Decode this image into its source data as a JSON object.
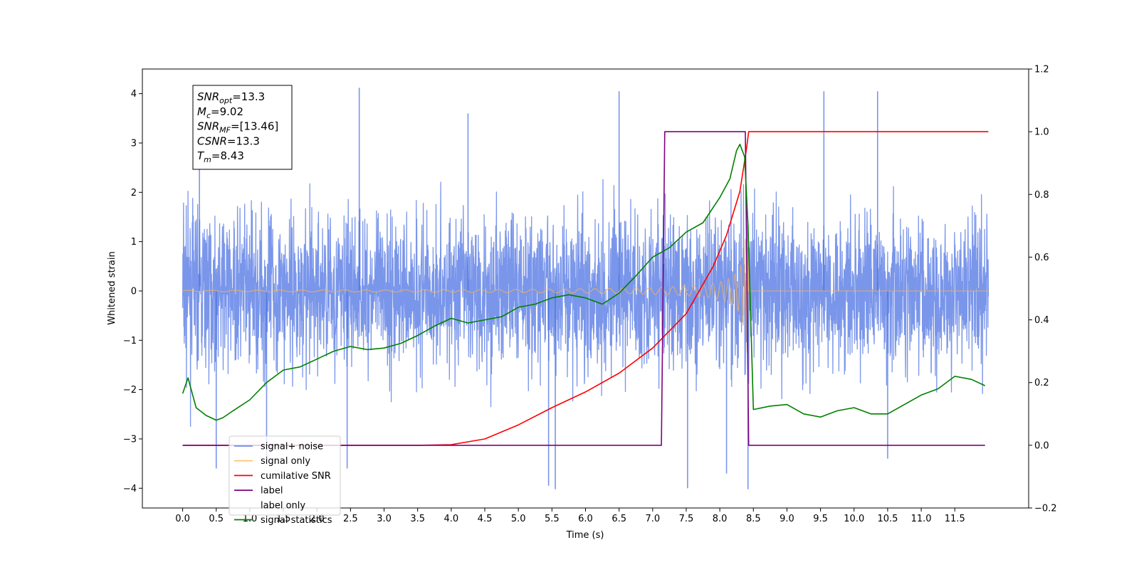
{
  "chart_data": {
    "type": "line",
    "xlabel": "Time (s)",
    "ylabel": "Whitened strain",
    "xlim": [
      -0.6,
      12.6
    ],
    "ylim_left": [
      -4.4,
      4.5
    ],
    "ylim_right": [
      -0.2,
      1.2
    ],
    "x_ticks": [
      "0.0",
      "0.5",
      "1.0",
      "1.5",
      "2.0",
      "2.5",
      "3.0",
      "3.5",
      "4.0",
      "4.5",
      "5.0",
      "5.5",
      "6.0",
      "6.5",
      "7.0",
      "7.5",
      "8.0",
      "8.5",
      "9.0",
      "9.5",
      "10.0",
      "10.5",
      "11.0",
      "11.5"
    ],
    "y_ticks_left": [
      "4",
      "3",
      "2",
      "1",
      "0",
      "−1",
      "−2",
      "−3",
      "−4"
    ],
    "y_ticks_right": [
      "1.2",
      "1.0",
      "0.8",
      "0.6",
      "0.4",
      "0.2",
      "0.0",
      "−0.2"
    ],
    "grid": false,
    "legend_position": "bottom-left",
    "legend": [
      "signal+ noise",
      "signal only",
      "cumilative SNR",
      "label",
      "label only",
      "signal statistics"
    ],
    "info_box": {
      "lines": [
        {
          "symbol": "SNR",
          "sub": "opt",
          "value": "=13.3"
        },
        {
          "symbol": "M",
          "sub": "c",
          "value": "=9.02"
        },
        {
          "symbol": "SNR",
          "sub": "MF",
          "value": "=[13.46]"
        },
        {
          "symbol": "CSNR",
          "sub": "",
          "value": "=13.3"
        },
        {
          "symbol": "T",
          "sub": "m",
          "value": "=8.43"
        }
      ]
    },
    "series": [
      {
        "name": "signal+ noise",
        "axis": "left",
        "color": "#4169e1",
        "kind": "noise",
        "x_range": [
          0.0,
          12.0
        ],
        "typical_range": [
          -2.5,
          2.5
        ],
        "spikes": [
          {
            "x": 2.63,
            "y": 4.12
          },
          {
            "x": 6.5,
            "y": 4.05
          },
          {
            "x": 9.55,
            "y": 4.05
          },
          {
            "x": 10.35,
            "y": 4.05
          },
          {
            "x": 0.25,
            "y": 3.75
          },
          {
            "x": 4.25,
            "y": 3.6
          },
          {
            "x": 5.45,
            "y": -3.95
          },
          {
            "x": 5.55,
            "y": -4.02
          },
          {
            "x": 7.52,
            "y": -4.0
          },
          {
            "x": 8.42,
            "y": -4.02
          },
          {
            "x": 0.5,
            "y": -3.6
          },
          {
            "x": 1.25,
            "y": -3.5
          },
          {
            "x": 2.45,
            "y": -3.6
          },
          {
            "x": 10.5,
            "y": -3.4
          },
          {
            "x": 8.1,
            "y": -3.7
          }
        ]
      },
      {
        "name": "signal only",
        "axis": "left",
        "color": "#ffb347",
        "kind": "chirp",
        "x_range": [
          0.0,
          12.0
        ],
        "merger_time": 8.43
      },
      {
        "name": "cumilative SNR",
        "axis": "right",
        "color": "#ff0000",
        "x": [
          0.0,
          3.5,
          4.0,
          4.5,
          5.0,
          5.5,
          6.0,
          6.5,
          7.0,
          7.5,
          7.9,
          8.1,
          8.3,
          8.4,
          8.43,
          12.0
        ],
        "y": [
          0.0,
          0.0,
          0.002,
          0.02,
          0.065,
          0.12,
          0.17,
          0.23,
          0.31,
          0.42,
          0.57,
          0.67,
          0.81,
          0.95,
          1.0,
          1.0
        ]
      },
      {
        "name": "label",
        "axis": "right",
        "color": "#800080",
        "x": [
          0.0,
          7.13,
          7.18,
          8.38,
          8.43,
          11.95
        ],
        "y": [
          0.0,
          0.0,
          1.0,
          1.0,
          0.0,
          0.0
        ]
      },
      {
        "name": "signal statistics",
        "axis": "right",
        "color": "#008000",
        "x": [
          0.0,
          0.08,
          0.2,
          0.35,
          0.5,
          0.6,
          0.75,
          1.0,
          1.25,
          1.5,
          1.75,
          2.0,
          2.25,
          2.5,
          2.75,
          3.0,
          3.25,
          3.5,
          3.75,
          4.0,
          4.25,
          4.5,
          4.75,
          5.0,
          5.25,
          5.5,
          5.75,
          6.0,
          6.25,
          6.5,
          6.75,
          7.0,
          7.25,
          7.5,
          7.75,
          8.0,
          8.15,
          8.25,
          8.3,
          8.37,
          8.42,
          8.5,
          8.75,
          9.0,
          9.25,
          9.5,
          9.75,
          10.0,
          10.25,
          10.5,
          10.75,
          11.0,
          11.25,
          11.5,
          11.75,
          11.95
        ],
        "y": [
          0.165,
          0.215,
          0.12,
          0.095,
          0.08,
          0.088,
          0.11,
          0.145,
          0.2,
          0.24,
          0.25,
          0.275,
          0.3,
          0.315,
          0.305,
          0.31,
          0.325,
          0.35,
          0.38,
          0.405,
          0.39,
          0.4,
          0.41,
          0.44,
          0.45,
          0.47,
          0.48,
          0.47,
          0.45,
          0.485,
          0.54,
          0.6,
          0.63,
          0.68,
          0.71,
          0.79,
          0.85,
          0.94,
          0.96,
          0.92,
          0.7,
          0.114,
          0.125,
          0.13,
          0.1,
          0.09,
          0.11,
          0.12,
          0.1,
          0.1,
          0.13,
          0.16,
          0.18,
          0.22,
          0.21,
          0.19
        ]
      }
    ]
  }
}
